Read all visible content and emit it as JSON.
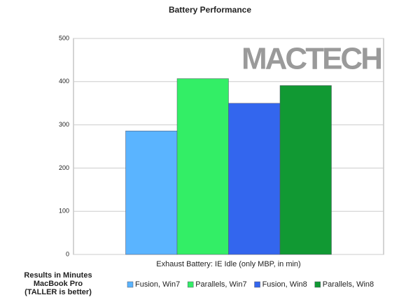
{
  "chart_data": {
    "type": "bar",
    "title": "Battery Performance",
    "categories": [
      "Exhaust Battery: IE Idle (only MBP, in min)"
    ],
    "series": [
      {
        "name": "Fusion, Win7",
        "color": "#5ab4ff",
        "values": [
          286
        ]
      },
      {
        "name": "Parallels, Win7",
        "color": "#33ee66",
        "values": [
          407
        ]
      },
      {
        "name": "Fusion, Win8",
        "color": "#3366ee",
        "values": [
          350
        ]
      },
      {
        "name": "Parallels, Win8",
        "color": "#119933",
        "values": [
          391
        ]
      }
    ],
    "ylim": [
      0,
      500
    ],
    "yticks": [
      0,
      100,
      200,
      300,
      400,
      500
    ],
    "grid": true,
    "annotations": [
      "Results in Minutes",
      "MacBook Pro",
      "(TALLER is better)"
    ],
    "logo": "MACTECH",
    "legend": "bottom"
  }
}
